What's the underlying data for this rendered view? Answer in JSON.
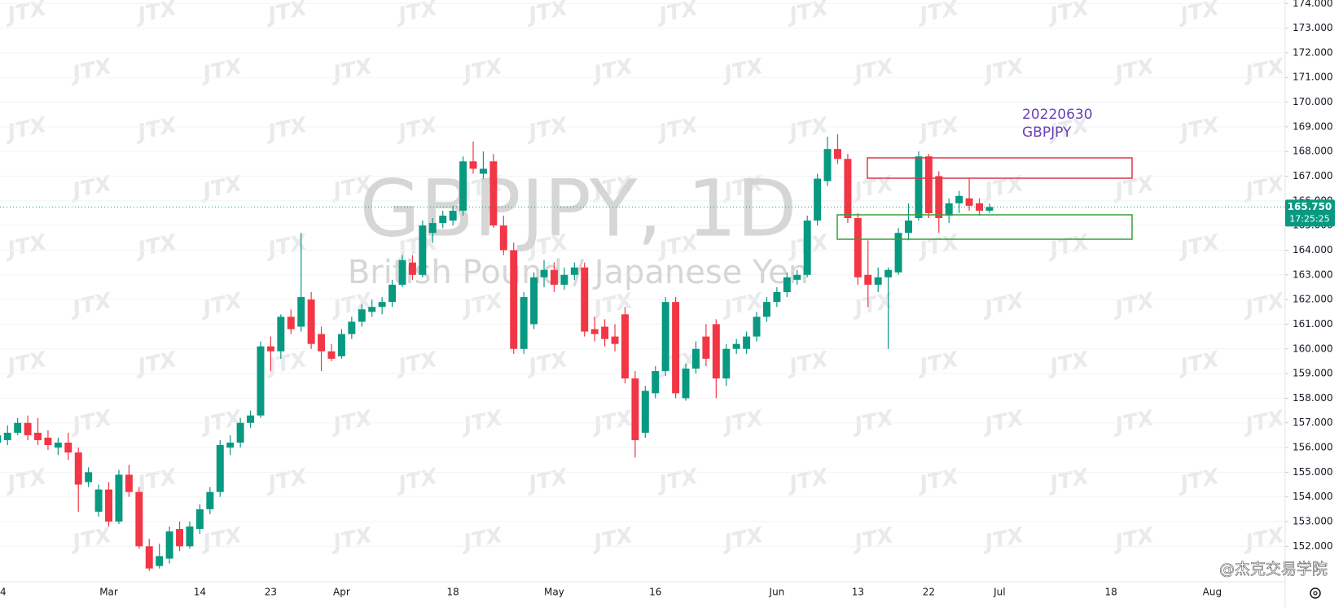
{
  "chart_data": {
    "type": "candlestick",
    "title": "GBPJPY, 1D",
    "subtitle": "British Pound / Japanese Yen",
    "annotation": [
      "20220630",
      "GBPJPY"
    ],
    "watermark": "JTX",
    "brand": "@杰克交易学院",
    "up_color": "#089981",
    "down_color": "#f23645",
    "grid": true,
    "categories": [
      "4",
      null,
      null,
      null,
      null,
      null,
      null,
      null,
      null,
      null,
      null,
      "Mar",
      null,
      null,
      null,
      null,
      null,
      null,
      null,
      null,
      "14",
      null,
      null,
      null,
      null,
      null,
      null,
      "23",
      null,
      null,
      null,
      null,
      null,
      null,
      "Apr",
      null,
      null,
      null,
      null,
      null,
      null,
      null,
      null,
      null,
      null,
      "18",
      null,
      null,
      null,
      null,
      null,
      null,
      null,
      null,
      null,
      "May",
      null,
      null,
      null,
      null,
      null,
      null,
      null,
      null,
      null,
      "16",
      null,
      null,
      null,
      null,
      null,
      null,
      null,
      null,
      null,
      null,
      null,
      "Jun",
      null,
      null,
      null,
      null,
      null,
      null,
      null,
      "13",
      null,
      null,
      null,
      null,
      null,
      null,
      "22",
      null,
      null,
      null,
      null,
      null,
      null,
      "Jul",
      null,
      null,
      null,
      null,
      null,
      null,
      null,
      null,
      null,
      null,
      "18",
      null,
      null,
      null,
      null,
      null,
      null,
      null,
      null,
      null,
      "Aug"
    ],
    "open": [
      156.2,
      156.3,
      156.6,
      157.0,
      156.6,
      156.4,
      156.0,
      156.2,
      155.8,
      154.6,
      153.4,
      154.3,
      153.0,
      154.9,
      154.2,
      152.0,
      151.2,
      151.5,
      152.7,
      152.0,
      152.7,
      153.5,
      154.2,
      156.0,
      156.2,
      157.0,
      157.3,
      160.1,
      159.9,
      161.3,
      160.9,
      162.0,
      160.6,
      159.9,
      159.7,
      160.6,
      161.1,
      161.5,
      161.7,
      161.9,
      162.6,
      163.5,
      163.0,
      164.7,
      165.1,
      165.2,
      165.6,
      167.6,
      167.1,
      167.6,
      165.0,
      164.0,
      160.0,
      161.0,
      162.9,
      163.2,
      162.6,
      163.0,
      163.3,
      160.8,
      160.9,
      160.5,
      161.4,
      158.8,
      156.6,
      158.2,
      159.1,
      161.9,
      158.0,
      159.2,
      160.5,
      161.0,
      158.8,
      160.0,
      160.0,
      160.5,
      161.3,
      161.9,
      162.3,
      162.8,
      163.0,
      165.2,
      166.8,
      168.1,
      167.7,
      165.3,
      163.0,
      162.6,
      162.9,
      163.1,
      164.7,
      165.3,
      167.8,
      167.0,
      165.4,
      165.9,
      166.1,
      165.9,
      165.6,
      null,
      null,
      null,
      null,
      null,
      null,
      null,
      null,
      null,
      null,
      null,
      null,
      null,
      null,
      null,
      null,
      null,
      null,
      null,
      null,
      null,
      null
    ],
    "high": [
      156.6,
      156.9,
      157.2,
      157.3,
      157.2,
      156.7,
      156.4,
      156.6,
      156.0,
      155.2,
      154.5,
      154.6,
      155.1,
      155.3,
      154.4,
      152.3,
      152.1,
      152.8,
      153.0,
      153.0,
      153.7,
      154.4,
      156.3,
      156.5,
      157.2,
      157.5,
      160.3,
      160.5,
      161.4,
      161.6,
      164.7,
      162.3,
      160.9,
      160.2,
      160.8,
      161.3,
      161.8,
      162.0,
      162.1,
      162.8,
      163.8,
      163.8,
      165.2,
      165.3,
      165.6,
      165.8,
      167.8,
      168.4,
      168.0,
      167.9,
      165.4,
      164.3,
      162.3,
      163.1,
      163.6,
      163.5,
      163.3,
      163.5,
      163.5,
      161.3,
      161.2,
      161.0,
      161.7,
      159.1,
      158.5,
      159.3,
      162.1,
      162.1,
      159.4,
      160.3,
      161.0,
      161.2,
      160.2,
      160.4,
      160.7,
      161.5,
      162.1,
      162.5,
      163.1,
      163.2,
      165.4,
      167.1,
      168.6,
      168.7,
      167.9,
      165.5,
      164.4,
      163.3,
      163.3,
      164.9,
      165.9,
      168.0,
      167.9,
      167.2,
      166.1,
      166.4,
      166.9,
      166.1,
      165.9,
      null,
      null,
      null,
      null,
      null,
      null,
      null,
      null,
      null,
      null,
      null,
      null,
      null,
      null,
      null,
      null,
      null,
      null,
      null,
      null,
      null,
      null
    ],
    "low": [
      156.0,
      156.1,
      156.5,
      156.3,
      156.1,
      155.9,
      155.7,
      155.5,
      153.4,
      154.4,
      153.2,
      152.8,
      152.9,
      154.0,
      151.9,
      151.0,
      151.1,
      151.3,
      151.8,
      151.9,
      152.5,
      153.3,
      154.0,
      155.7,
      156.0,
      156.8,
      157.2,
      159.1,
      159.6,
      160.6,
      160.7,
      160.0,
      159.1,
      159.5,
      159.6,
      160.4,
      160.9,
      161.3,
      161.4,
      161.7,
      162.5,
      162.8,
      162.9,
      164.3,
      164.9,
      165.0,
      165.4,
      167.1,
      166.9,
      164.9,
      163.8,
      159.8,
      159.8,
      160.8,
      162.5,
      162.3,
      162.4,
      162.8,
      160.5,
      160.3,
      160.1,
      159.9,
      158.6,
      155.6,
      156.4,
      158.0,
      158.9,
      158.0,
      157.9,
      159.0,
      159.3,
      158.0,
      158.5,
      159.8,
      159.8,
      160.3,
      161.1,
      161.7,
      162.1,
      162.6,
      162.9,
      165.0,
      166.6,
      167.5,
      165.1,
      162.6,
      161.7,
      162.3,
      160.0,
      163.0,
      164.4,
      165.2,
      165.3,
      164.7,
      165.1,
      165.5,
      165.6,
      165.4,
      165.5,
      null,
      null,
      null,
      null,
      null,
      null,
      null,
      null,
      null,
      null,
      null,
      null,
      null,
      null,
      null,
      null,
      null,
      null,
      null,
      null,
      null,
      null
    ],
    "close": [
      156.5,
      156.6,
      157.0,
      156.5,
      156.3,
      156.1,
      156.2,
      155.8,
      154.5,
      155.0,
      154.3,
      153.0,
      154.9,
      154.2,
      152.0,
      151.1,
      151.6,
      152.6,
      152.0,
      152.8,
      153.5,
      154.2,
      156.1,
      156.2,
      157.0,
      157.3,
      160.1,
      159.9,
      161.3,
      160.8,
      162.1,
      160.2,
      159.9,
      159.6,
      160.6,
      161.1,
      161.6,
      161.7,
      161.9,
      162.6,
      163.6,
      163.0,
      165.0,
      165.1,
      165.4,
      165.6,
      167.6,
      167.3,
      167.3,
      165.0,
      164.0,
      160.0,
      162.1,
      162.9,
      163.2,
      162.6,
      163.0,
      163.3,
      160.7,
      160.6,
      160.4,
      160.2,
      158.8,
      156.3,
      158.3,
      159.1,
      161.9,
      158.2,
      159.2,
      160.0,
      159.6,
      158.8,
      160.0,
      160.2,
      160.5,
      161.3,
      161.9,
      162.3,
      162.9,
      163.0,
      165.2,
      166.9,
      168.1,
      167.7,
      165.3,
      162.9,
      162.6,
      162.9,
      163.2,
      164.7,
      165.2,
      167.8,
      165.5,
      165.3,
      165.9,
      166.2,
      165.8,
      165.6,
      165.75,
      null,
      null,
      null,
      null,
      null,
      null,
      null,
      null,
      null,
      null,
      null,
      null,
      null,
      null,
      null,
      null,
      null,
      null,
      null,
      null,
      null,
      null
    ],
    "last_price": {
      "value": 165.75,
      "label": "165.750"
    },
    "countdown": "17:25:25",
    "ylim": [
      150.56,
      174.14
    ],
    "yticks": [
      {
        "value": 152,
        "label": "152.000"
      },
      {
        "value": 153,
        "label": "153.000"
      },
      {
        "value": 154,
        "label": "154.000"
      },
      {
        "value": 155,
        "label": "155.000"
      },
      {
        "value": 156,
        "label": "156.000"
      },
      {
        "value": 157,
        "label": "157.000"
      },
      {
        "value": 158,
        "label": "158.000"
      },
      {
        "value": 159,
        "label": "159.000"
      },
      {
        "value": 160,
        "label": "160.000"
      },
      {
        "value": 161,
        "label": "161.000"
      },
      {
        "value": 162,
        "label": "162.000"
      },
      {
        "value": 163,
        "label": "163.000"
      },
      {
        "value": 164,
        "label": "164.000"
      },
      {
        "value": 165,
        "label": "165.000"
      },
      {
        "value": 166,
        "label": "166.000"
      },
      {
        "value": 167,
        "label": "167.000"
      },
      {
        "value": 168,
        "label": "168.000"
      },
      {
        "value": 169,
        "label": "169.000"
      },
      {
        "value": 170,
        "label": "170.000"
      },
      {
        "value": 171,
        "label": "171.000"
      },
      {
        "value": 172,
        "label": "172.000"
      },
      {
        "value": 173,
        "label": "173.000"
      },
      {
        "value": 174,
        "label": "174.000"
      }
    ]
  }
}
